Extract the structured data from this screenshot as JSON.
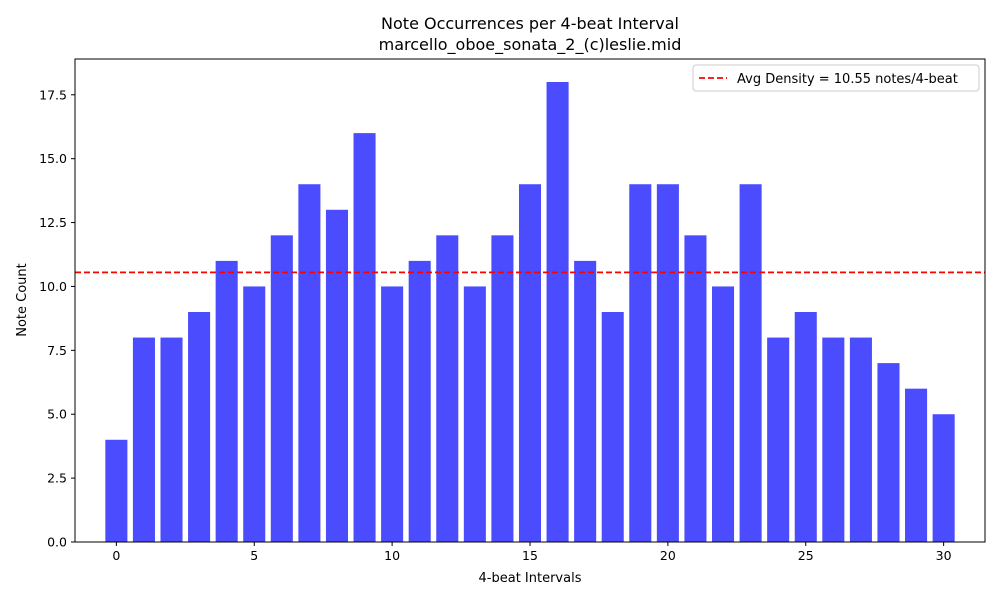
{
  "chart_data": {
    "type": "bar",
    "title": "Note Occurrences per 4-beat Interval",
    "subtitle": "marcello_oboe_sonata_2_(c)leslie.mid",
    "xlabel": "4-beat Intervals",
    "ylabel": "Note Count",
    "x": [
      0,
      1,
      2,
      3,
      4,
      5,
      6,
      7,
      8,
      9,
      10,
      11,
      12,
      13,
      14,
      15,
      16,
      17,
      18,
      19,
      20,
      21,
      22,
      23,
      24,
      25,
      26,
      27,
      28,
      29,
      30
    ],
    "values": [
      4,
      8,
      8,
      9,
      11,
      10,
      12,
      14,
      13,
      16,
      10,
      11,
      12,
      10,
      12,
      14,
      18,
      11,
      9,
      14,
      14,
      12,
      10,
      14,
      8,
      9,
      8,
      8,
      7,
      6,
      5
    ],
    "xlim": [
      -1.5,
      31.5
    ],
    "ylim": [
      0,
      18.9
    ],
    "xticks": [
      0,
      5,
      10,
      15,
      20,
      25,
      30
    ],
    "xtick_labels": [
      "0",
      "5",
      "10",
      "15",
      "20",
      "25",
      "30"
    ],
    "yticks": [
      0,
      2.5,
      5,
      7.5,
      10,
      12.5,
      15,
      17.5
    ],
    "ytick_labels": [
      "0.0",
      "2.5",
      "5.0",
      "7.5",
      "10.0",
      "12.5",
      "15.0",
      "17.5"
    ],
    "bar_color": "#4c4cff",
    "grid": false,
    "reference_line": {
      "value": 10.55,
      "label": "Avg Density = 10.55 notes/4-beat",
      "color": "#ff0000",
      "style": "dashed"
    },
    "legend": {
      "placement": "top-right"
    }
  }
}
